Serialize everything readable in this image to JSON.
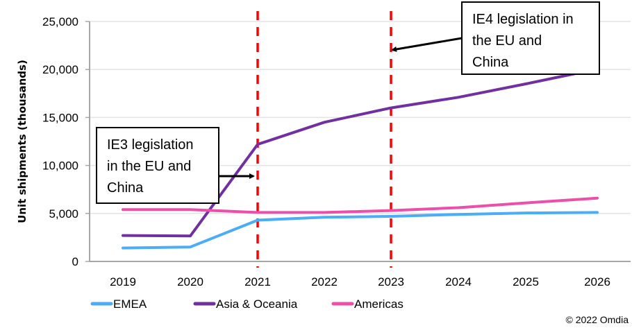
{
  "chart_data": {
    "type": "line",
    "title": "",
    "xlabel": "",
    "ylabel": "Unit shipments (thousands)",
    "ylim": [
      0,
      25000
    ],
    "yticks": [
      0,
      5000,
      10000,
      15000,
      20000,
      25000
    ],
    "ytick_labels": [
      "0",
      "5,000",
      "10,000",
      "15,000",
      "20,000",
      "25,000"
    ],
    "categories": [
      "2019",
      "2020",
      "2021",
      "2022",
      "2023",
      "2024",
      "2025",
      "2026"
    ],
    "grid": "horizontal",
    "legend_position": "bottom",
    "series": [
      {
        "name": "EMEA",
        "color": "#4BACF7",
        "values": [
          1400,
          1500,
          4300,
          4600,
          4700,
          4900,
          5050,
          5100
        ]
      },
      {
        "name": "Asia & Oceania",
        "color": "#7030A0",
        "values": [
          2700,
          2650,
          12200,
          14500,
          16000,
          17100,
          18500,
          20050
        ]
      },
      {
        "name": "Americas",
        "color": "#EC4FAA",
        "values": [
          5400,
          5400,
          5100,
          5100,
          5300,
          5600,
          6100,
          6600
        ]
      }
    ],
    "reference_lines": [
      {
        "x": "2021",
        "color": "#FF0000",
        "style": "dashed"
      },
      {
        "x": "2023",
        "color": "#FF0000",
        "style": "dashed"
      }
    ],
    "annotations": [
      {
        "lines": [
          "IE3 legislation",
          "in the EU and",
          "China"
        ],
        "target": "2021"
      },
      {
        "lines": [
          "IE4 legislation in",
          "the EU and",
          "China"
        ],
        "target": "2023"
      }
    ],
    "source": "© 2022 Omdia"
  }
}
